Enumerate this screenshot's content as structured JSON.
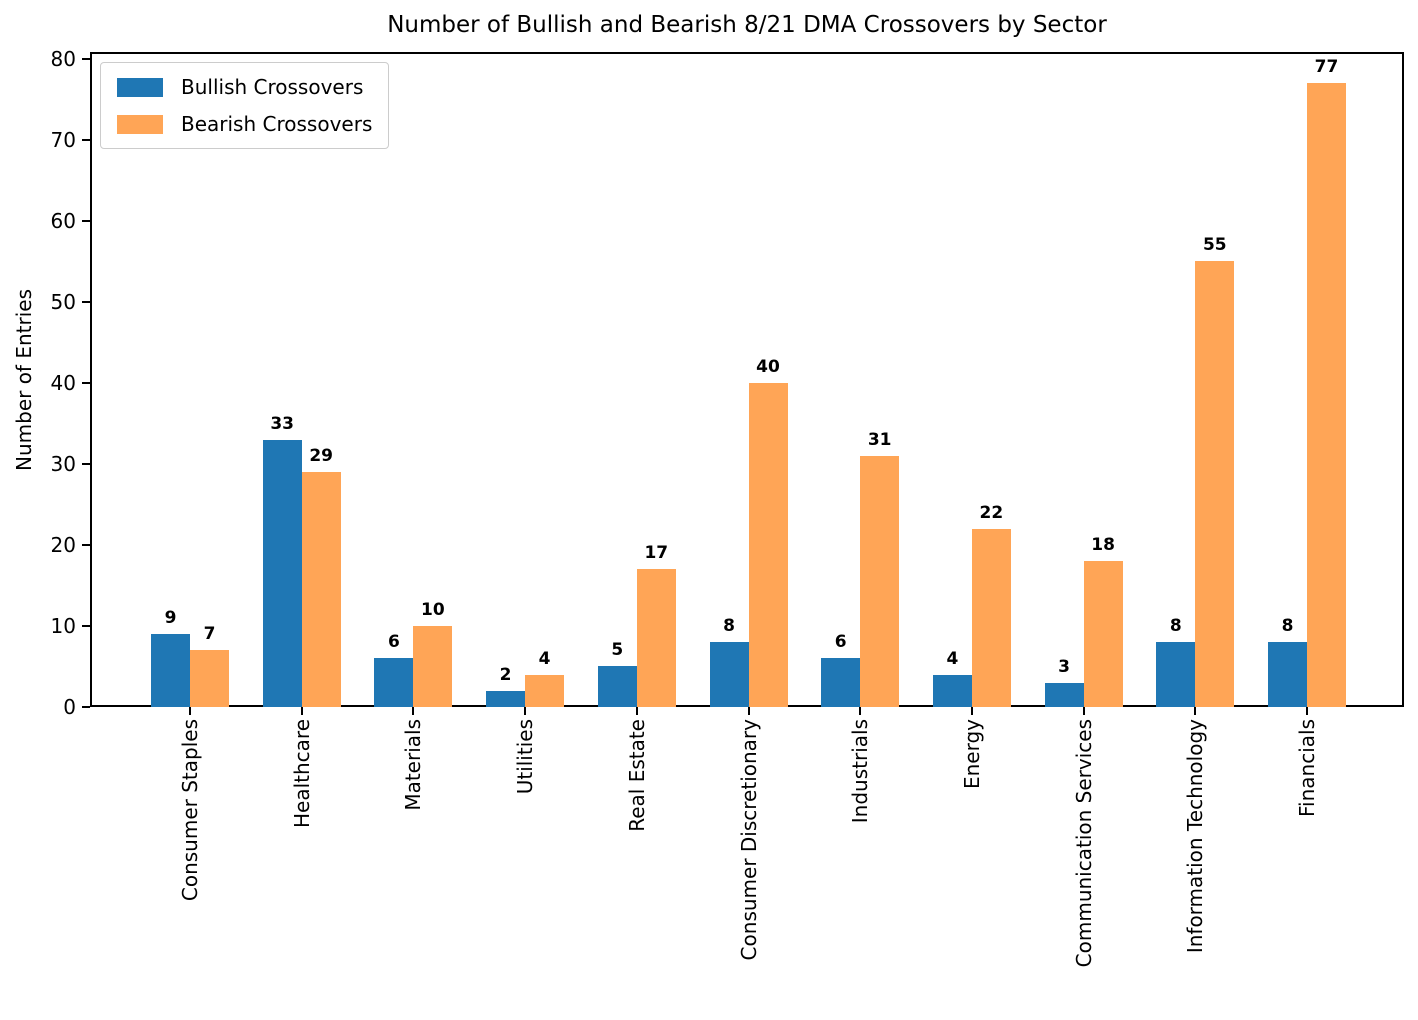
{
  "title": "Number of Bullish and Bearish 8/21 DMA Crossovers by Sector",
  "chart_data": {
    "type": "bar",
    "title": "Number of Bullish and Bearish 8/21 DMA Crossovers by Sector",
    "xlabel": "",
    "ylabel": "Number of Entries",
    "categories": [
      "Consumer Staples",
      "Healthcare",
      "Materials",
      "Utilities",
      "Real Estate",
      "Consumer Discretionary",
      "Industrials",
      "Energy",
      "Communication Services",
      "Information Technology",
      "Financials"
    ],
    "series": [
      {
        "name": "Bullish Crossovers",
        "color": "#1f77b4",
        "values": [
          9,
          33,
          6,
          2,
          5,
          8,
          6,
          4,
          3,
          8,
          8
        ]
      },
      {
        "name": "Bearish Crossovers",
        "color": "#ffa556",
        "values": [
          7,
          29,
          10,
          4,
          17,
          40,
          31,
          22,
          18,
          55,
          77
        ]
      }
    ],
    "yticks": [
      0,
      10,
      20,
      30,
      40,
      50,
      60,
      70,
      80
    ],
    "ylim": [
      0,
      80.85
    ],
    "grid": false,
    "legend_position": "upper left",
    "bar_value_labels": true,
    "axis_color": "#000000",
    "background_color": "#ffffff"
  }
}
